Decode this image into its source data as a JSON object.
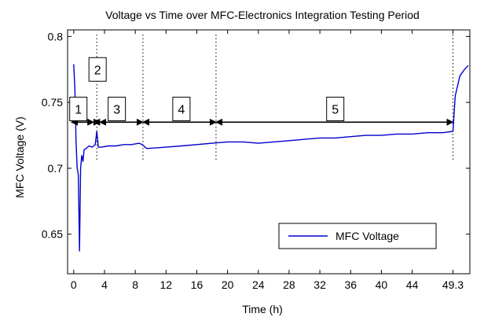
{
  "chart_data": {
    "type": "line",
    "title": "Voltage vs Time over MFC-Electronics Integration Testing Period",
    "xlabel": "Time (h)",
    "ylabel": "MFC Voltage (V)",
    "xlim": [
      -0.8,
      51.5
    ],
    "ylim": [
      0.62,
      0.805
    ],
    "xticks": [
      0,
      4,
      8,
      12,
      16,
      20,
      24,
      28,
      32,
      36,
      40,
      44,
      49.3
    ],
    "xtick_labels": [
      "0",
      "4",
      "8",
      "12",
      "16",
      "20",
      "24",
      "28",
      "32",
      "36",
      "40",
      "44",
      "49.3"
    ],
    "yticks": [
      0.65,
      0.7,
      0.75,
      0.8
    ],
    "ytick_labels": [
      "0.65",
      "0.7",
      "0.75",
      "0.8"
    ],
    "grid": false,
    "legend": {
      "position": "bottom-right",
      "entries": [
        "MFC Voltage"
      ]
    },
    "series": [
      {
        "name": "MFC Voltage",
        "color": "#0000cc",
        "x": [
          0,
          0.15,
          0.3,
          0.45,
          0.6,
          0.75,
          0.9,
          1.05,
          1.2,
          1.35,
          1.6,
          2.0,
          2.4,
          2.8,
          3.0,
          3.2,
          3.6,
          4.5,
          5.5,
          6.5,
          7.5,
          8.5,
          8.9,
          9.5,
          12,
          14,
          16,
          18,
          20,
          22,
          24,
          26,
          28,
          30,
          32,
          34,
          36,
          38,
          40,
          42,
          44,
          46,
          48,
          49.3,
          49.6,
          50.2,
          50.8,
          51.3
        ],
        "y": [
          0.779,
          0.76,
          0.72,
          0.7,
          0.695,
          0.637,
          0.7,
          0.71,
          0.705,
          0.714,
          0.715,
          0.717,
          0.716,
          0.718,
          0.728,
          0.716,
          0.716,
          0.717,
          0.717,
          0.718,
          0.718,
          0.719,
          0.718,
          0.715,
          0.716,
          0.717,
          0.718,
          0.719,
          0.72,
          0.72,
          0.719,
          0.72,
          0.721,
          0.722,
          0.723,
          0.723,
          0.724,
          0.725,
          0.725,
          0.726,
          0.726,
          0.727,
          0.727,
          0.728,
          0.755,
          0.77,
          0.775,
          0.778
        ]
      }
    ],
    "phase_boundaries": [
      3.0,
      9.0,
      18.5,
      49.3
    ],
    "arrow_y": 0.735,
    "phases": [
      {
        "label": "1",
        "x_start": -0.3,
        "x_end": 2.6,
        "box_x": 0.6,
        "box_y": 0.745
      },
      {
        "label": "2",
        "x_start": 2.6,
        "x_end": 3.4,
        "box_x": 3.1,
        "box_y": 0.775
      },
      {
        "label": "3",
        "x_start": 3.4,
        "x_end": 9.0,
        "box_x": 5.6,
        "box_y": 0.745
      },
      {
        "label": "4",
        "x_start": 9.0,
        "x_end": 18.5,
        "box_x": 14.0,
        "box_y": 0.745
      },
      {
        "label": "5",
        "x_start": 18.5,
        "x_end": 49.3,
        "box_x": 34.0,
        "box_y": 0.745
      }
    ]
  }
}
